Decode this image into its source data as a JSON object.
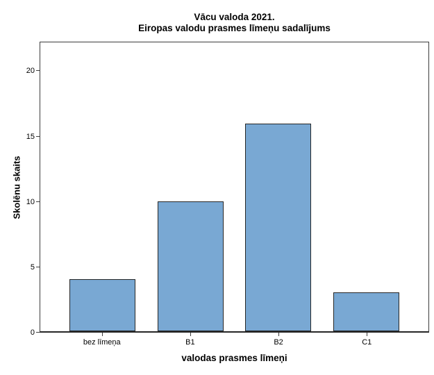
{
  "chart": {
    "title_line1": "Vācu valoda 2021.",
    "title_line2": "Eiropas valodu prasmes līmeņu sadalījums",
    "ylabel": "Skolēnu skaits",
    "xlabel": "valodas prasmes līmeņi"
  },
  "chart_data": {
    "type": "bar",
    "title": "Vācu valoda 2021.",
    "subtitle": "Eiropas valodu prasmes līmeņu sadalījums",
    "categories": [
      "bez līmeņa",
      "B1",
      "B2",
      "C1"
    ],
    "values": [
      4,
      10,
      16,
      3
    ],
    "xlabel": "valodas prasmes līmeņi",
    "ylabel": "Skolēnu skaits",
    "ylim": [
      0,
      22.25
    ],
    "yticks": [
      0,
      5,
      10,
      15,
      20
    ],
    "grid": false,
    "legend": false,
    "bar_color": "#79A8D3",
    "bar_border_color": "#262626",
    "axis_color": "#3c3c3c"
  }
}
